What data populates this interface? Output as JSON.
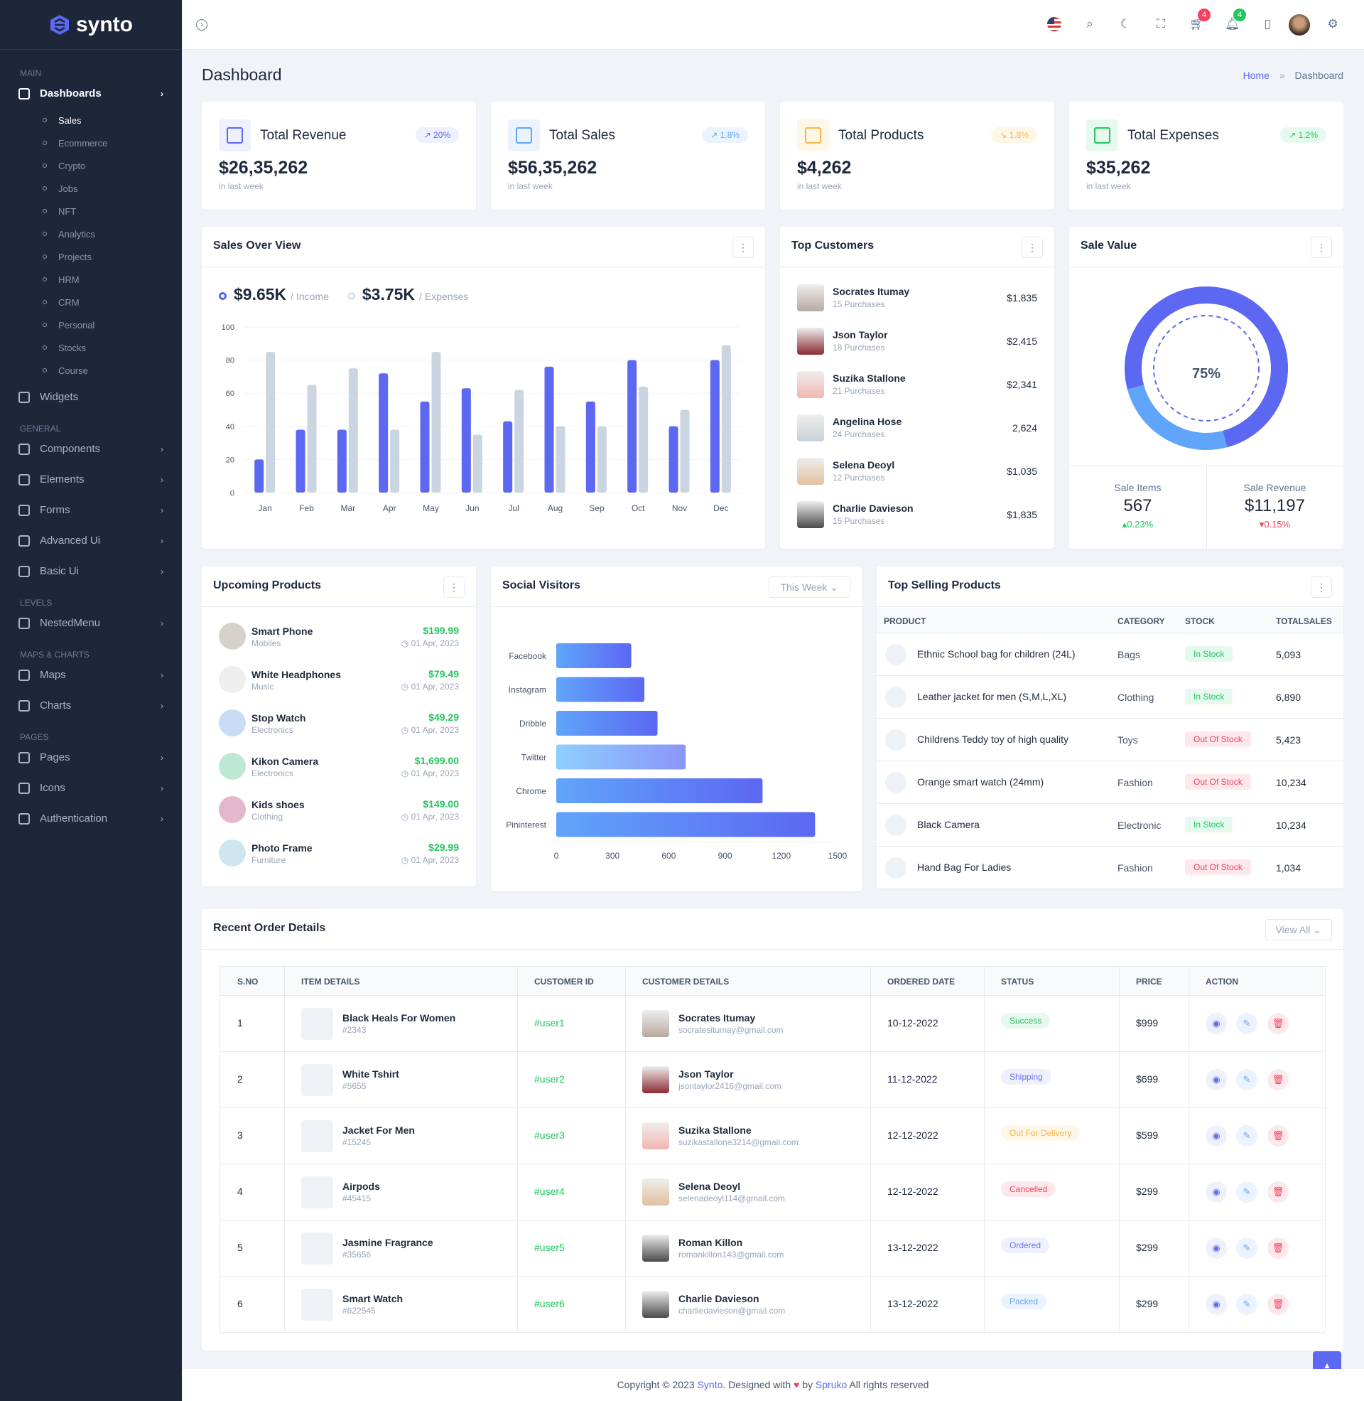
{
  "brand": {
    "name": "synto",
    "accent": "#5c67f2"
  },
  "sidebar": {
    "sections": [
      {
        "title": "MAIN",
        "items": [
          {
            "label": "Dashboards",
            "icon": "home-icon",
            "active": true,
            "children": [
              "Sales",
              "Ecommerce",
              "Crypto",
              "Jobs",
              "NFT",
              "Analytics",
              "Projects",
              "HRM",
              "CRM",
              "Personal",
              "Stocks",
              "Course"
            ]
          },
          {
            "label": "Widgets",
            "icon": "grid-icon"
          }
        ]
      },
      {
        "title": "GENERAL",
        "items": [
          {
            "label": "Components",
            "icon": "box-icon",
            "chevron": true
          },
          {
            "label": "Elements",
            "icon": "cpu-icon",
            "chevron": true
          },
          {
            "label": "Forms",
            "icon": "file-icon",
            "chevron": true
          },
          {
            "label": "Advanced Ui",
            "icon": "layers-icon",
            "chevron": true
          },
          {
            "label": "Basic Ui",
            "icon": "doc-icon",
            "chevron": true
          }
        ]
      },
      {
        "title": "LEVELS",
        "items": [
          {
            "label": "NestedMenu",
            "icon": "tree-icon",
            "chevron": true
          }
        ]
      },
      {
        "title": "MAPS & CHARTS",
        "items": [
          {
            "label": "Maps",
            "icon": "pin-icon",
            "chevron": true
          },
          {
            "label": "Charts",
            "icon": "pie-icon",
            "chevron": true
          }
        ]
      },
      {
        "title": "PAGES",
        "items": [
          {
            "label": "Pages",
            "icon": "book-icon",
            "chevron": true
          },
          {
            "label": "Icons",
            "icon": "globe-icon",
            "chevron": true
          },
          {
            "label": "Authentication",
            "icon": "info-icon",
            "chevron": true
          }
        ]
      }
    ]
  },
  "header": {
    "cart_count": "4",
    "notif_count": "4"
  },
  "page": {
    "title": "Dashboard",
    "breadcrumb": [
      "Home",
      "Dashboard"
    ]
  },
  "stats": [
    {
      "name": "Total Revenue",
      "value": "$26,35,262",
      "note": "in last week",
      "change": "20%",
      "trend": "up",
      "color": "#5c67f2"
    },
    {
      "name": "Total Sales",
      "value": "$56,35,262",
      "note": "in last week",
      "change": "1.8%",
      "trend": "up",
      "color": "#60a5fa"
    },
    {
      "name": "Total Products",
      "value": "$4,262",
      "note": "in last week",
      "change": "1.8%",
      "trend": "down",
      "color": "#f5b849"
    },
    {
      "name": "Total Expenses",
      "value": "$35,262",
      "note": "in last week",
      "change": "1.2%",
      "trend": "up",
      "color": "#22c55e"
    }
  ],
  "sales_overview": {
    "title": "Sales Over View",
    "income_value": "$9.65K",
    "income_label": "/ Income",
    "expense_value": "$3.75K",
    "expense_label": "/ Expenses"
  },
  "top_customers": {
    "title": "Top Customers",
    "items": [
      {
        "name": "Socrates Itumay",
        "purchases": "15 Purchases",
        "amount": "$1,835"
      },
      {
        "name": "Json Taylor",
        "purchases": "18 Purchases",
        "amount": "$2,415"
      },
      {
        "name": "Suzika Stallone",
        "purchases": "21 Purchases",
        "amount": "$2,341"
      },
      {
        "name": "Angelina Hose",
        "purchases": "24 Purchases",
        "amount": "2,624"
      },
      {
        "name": "Selena Deoyl",
        "purchases": "12 Purchases",
        "amount": "$1,035"
      },
      {
        "name": "Charlie Davieson",
        "purchases": "15 Purchases",
        "amount": "$1,835"
      }
    ]
  },
  "sale_value": {
    "title": "Sale Value",
    "percent_label": "75%",
    "percent": 75,
    "items_label": "Sale Items",
    "items_value": "567",
    "items_change": "0.23%",
    "revenue_label": "Sale Revenue",
    "revenue_value": "$11,197",
    "revenue_change": "0.15%"
  },
  "upcoming": {
    "title": "Upcoming Products",
    "items": [
      {
        "name": "Smart Phone",
        "cat": "Mobiles",
        "price": "$199.99",
        "date": "01 Apr, 2023"
      },
      {
        "name": "White Headphones",
        "cat": "Music",
        "price": "$79.49",
        "date": "01 Apr, 2023"
      },
      {
        "name": "Stop Watch",
        "cat": "Electronics",
        "price": "$49.29",
        "date": "01 Apr, 2023"
      },
      {
        "name": "Kikon Camera",
        "cat": "Electronics",
        "price": "$1,699.00",
        "date": "01 Apr, 2023"
      },
      {
        "name": "Kids shoes",
        "cat": "Clothing",
        "price": "$149.00",
        "date": "01 Apr, 2023"
      },
      {
        "name": "Photo Frame",
        "cat": "Furniture",
        "price": "$29.99",
        "date": "01 Apr, 2023"
      }
    ]
  },
  "social": {
    "title": "Social Visitors",
    "filter": "This Week"
  },
  "top_selling": {
    "title": "Top Selling Products",
    "columns": [
      "PRODUCT",
      "CATEGORY",
      "STOCK",
      "TOTALSALES"
    ],
    "rows": [
      {
        "product": "Ethnic School bag for children (24L)",
        "category": "Bags",
        "stock": "In Stock",
        "sales": "5,093"
      },
      {
        "product": "Leather jacket for men (S,M,L,XL)",
        "category": "Clothing",
        "stock": "In Stock",
        "sales": "6,890"
      },
      {
        "product": "Childrens Teddy toy of high quality",
        "category": "Toys",
        "stock": "Out Of Stock",
        "sales": "5,423"
      },
      {
        "product": "Orange smart watch (24mm)",
        "category": "Fashion",
        "stock": "Out Of Stock",
        "sales": "10,234"
      },
      {
        "product": "Black Camera",
        "category": "Electronic",
        "stock": "In Stock",
        "sales": "10,234"
      },
      {
        "product": "Hand Bag For Ladies",
        "category": "Fashion",
        "stock": "Out Of Stock",
        "sales": "1,034"
      }
    ]
  },
  "orders": {
    "title": "Recent Order Details",
    "view_all": "View All",
    "columns": [
      "S.NO",
      "ITEM DETAILS",
      "CUSTOMER ID",
      "CUSTOMER DETAILS",
      "ORDERED DATE",
      "STATUS",
      "PRICE",
      "ACTION"
    ],
    "rows": [
      {
        "no": "1",
        "item": "Black Heals For Women",
        "code": "#2343",
        "cid": "#user1",
        "cname": "Socrates Itumay",
        "email": "socratesitumay@gmail.com",
        "date": "10-12-2022",
        "status": "Success",
        "price": "$999"
      },
      {
        "no": "2",
        "item": "White Tshirt",
        "code": "#5655",
        "cid": "#user2",
        "cname": "Json Taylor",
        "email": "jsontaylor2416@gmail.com",
        "date": "11-12-2022",
        "status": "Shipping",
        "price": "$699"
      },
      {
        "no": "3",
        "item": "Jacket For Men",
        "code": "#15245",
        "cid": "#user3",
        "cname": "Suzika Stallone",
        "email": "suzikastallone3214@gmail.com",
        "date": "12-12-2022",
        "status": "Out For Delivery",
        "price": "$599"
      },
      {
        "no": "4",
        "item": "Airpods",
        "code": "#45415",
        "cid": "#user4",
        "cname": "Selena Deoyl",
        "email": "selenadeoyl114@gmail.com",
        "date": "12-12-2022",
        "status": "Cancelled",
        "price": "$299"
      },
      {
        "no": "5",
        "item": "Jasmine Fragrance",
        "code": "#35656",
        "cid": "#user5",
        "cname": "Roman Killon",
        "email": "romankillon143@gmail.com",
        "date": "13-12-2022",
        "status": "Ordered",
        "price": "$299"
      },
      {
        "no": "6",
        "item": "Smart Watch",
        "code": "#622545",
        "cid": "#user6",
        "cname": "Charlie Davieson",
        "email": "charliedavieson@gmail.com",
        "date": "13-12-2022",
        "status": "Packed",
        "price": "$299"
      }
    ]
  },
  "footer": {
    "prefix": "Copyright © 2023",
    "brand": "Synto",
    "mid": ". Designed with",
    "by": "by",
    "author": "Spruko",
    "suffix": "All rights reserved"
  },
  "chart_data": [
    {
      "type": "bar",
      "categories": [
        "Jan",
        "Feb",
        "Mar",
        "Apr",
        "May",
        "Jun",
        "Jul",
        "Aug",
        "Sep",
        "Oct",
        "Nov",
        "Dec"
      ],
      "series": [
        {
          "name": "Income",
          "values": [
            20,
            38,
            38,
            72,
            55,
            63,
            43,
            76,
            55,
            80,
            40,
            80
          ],
          "color": "#5c67f2"
        },
        {
          "name": "Expenses",
          "values": [
            85,
            65,
            75,
            38,
            85,
            35,
            62,
            40,
            40,
            64,
            50,
            89
          ],
          "color": "#cbd5e1"
        }
      ],
      "ylim": [
        0,
        100
      ],
      "yticks": [
        0,
        20,
        40,
        60,
        80,
        100
      ],
      "grid": true
    },
    {
      "type": "pie",
      "values": [
        75,
        25
      ],
      "colors": [
        "#5c67f2",
        "#60a5fa"
      ],
      "label": "75%"
    },
    {
      "type": "bar",
      "orientation": "horizontal",
      "categories": [
        "Facebook",
        "Instagram",
        "Dribble",
        "Twitter",
        "Chrome",
        "Pininterest"
      ],
      "values": [
        400,
        470,
        540,
        690,
        1100,
        1380
      ],
      "xlim": [
        0,
        1500
      ],
      "xticks": [
        0,
        300,
        600,
        900,
        1200,
        1500
      ]
    }
  ]
}
